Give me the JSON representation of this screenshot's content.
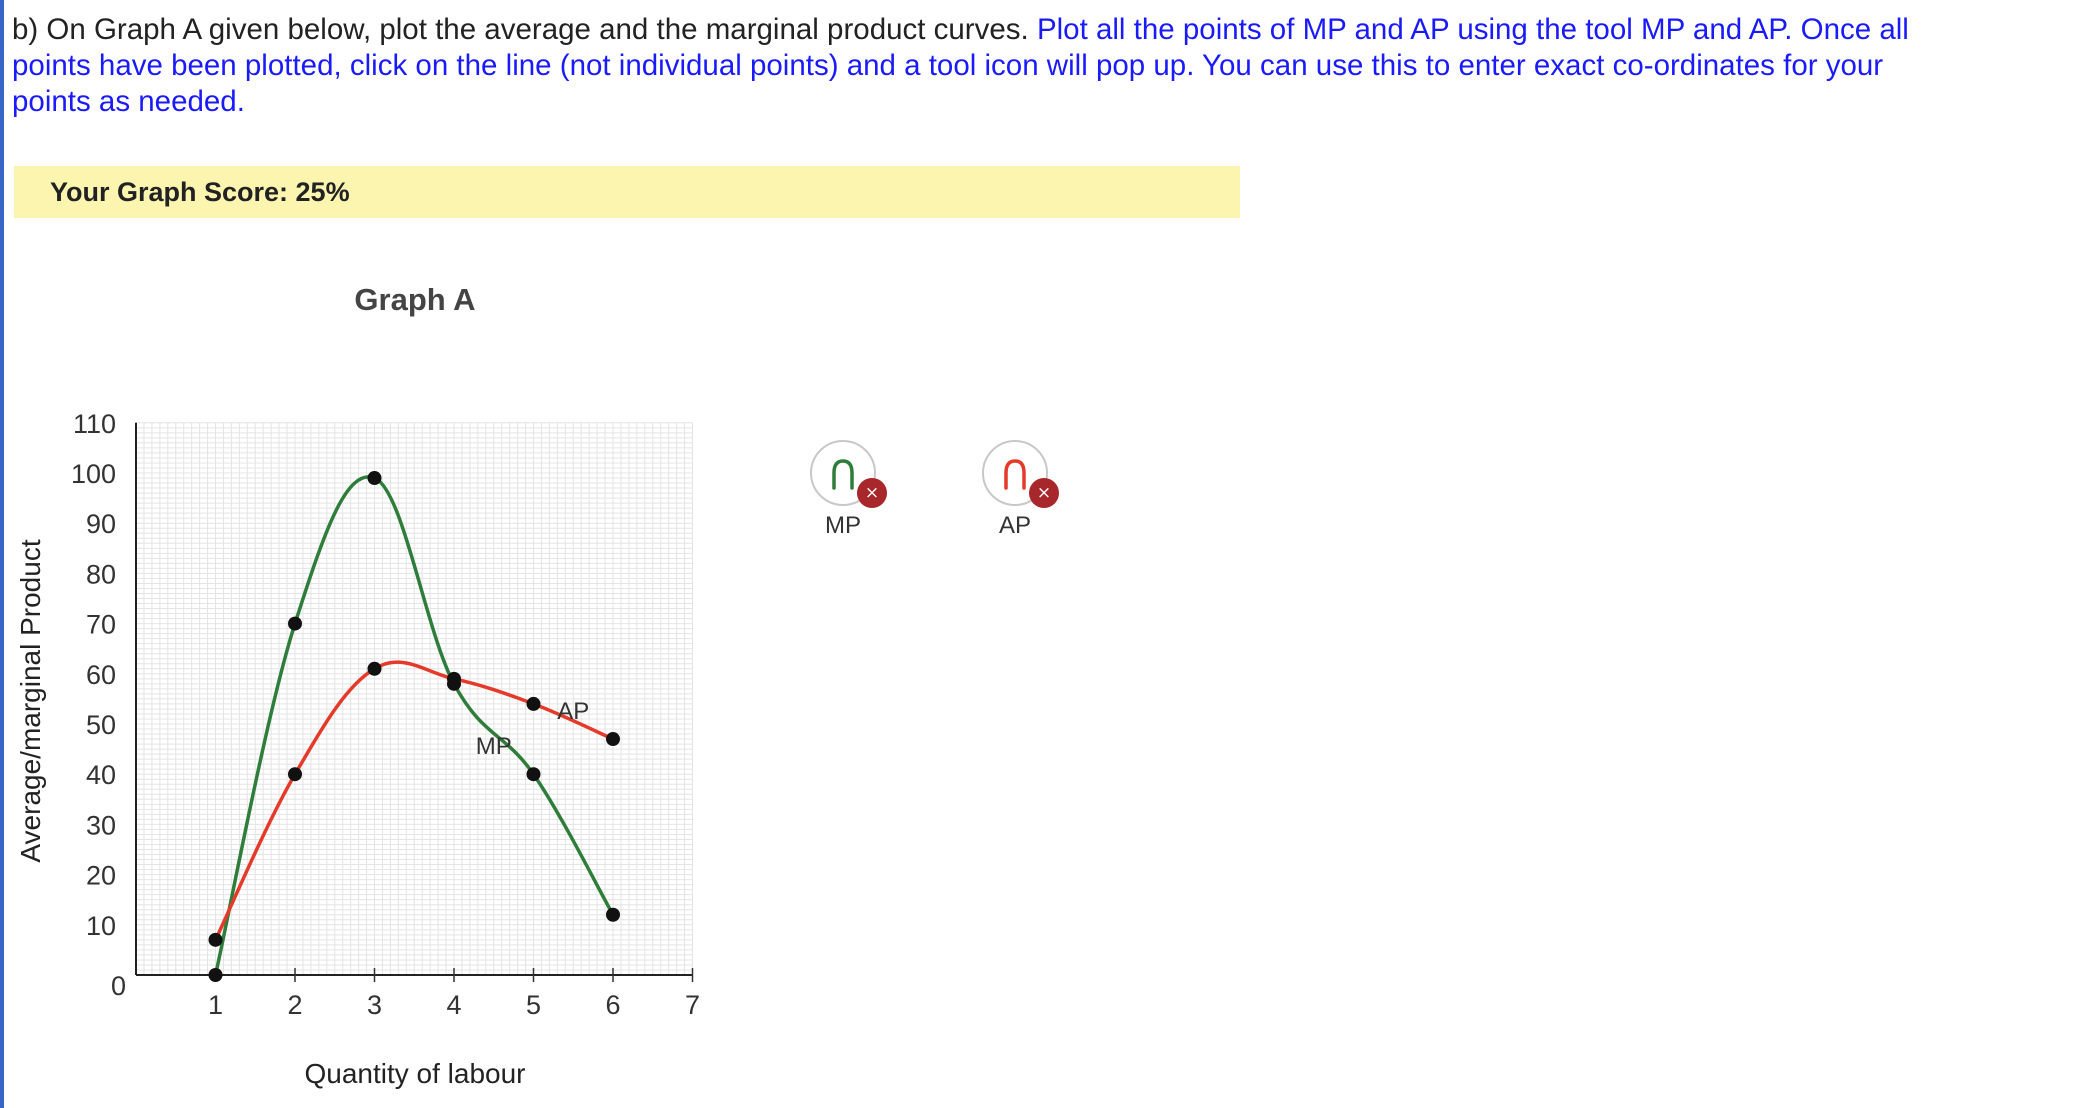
{
  "instructions": {
    "part_a": "b) On Graph A given below, plot the average and the marginal product curves. ",
    "part_b": "Plot all the points of MP and AP using the tool MP and AP. Once all points have been plotted, click on the line (not individual points) and a tool icon will pop up. You can use this to enter exact co-ordinates for your points as needed."
  },
  "score": {
    "label": "Your Graph Score: 25%"
  },
  "tools": [
    {
      "label": "MP",
      "color": "#2e7d3a",
      "remove": "×",
      "icon": "arc-curve-icon"
    },
    {
      "label": "AP",
      "color": "#e53a2a",
      "remove": "×",
      "icon": "arc-curve-icon"
    }
  ],
  "chart_data": {
    "type": "line",
    "title": "Graph A",
    "xlabel": "Quantity of labour",
    "ylabel": "Average/marginal Product",
    "xlim": [
      0,
      7
    ],
    "ylim": [
      0,
      110
    ],
    "xticks": [
      "1",
      "2",
      "3",
      "4",
      "5",
      "6",
      "7"
    ],
    "yticks": [
      "0",
      "10",
      "20",
      "30",
      "40",
      "50",
      "60",
      "70",
      "80",
      "90",
      "100",
      "110"
    ],
    "grid": true,
    "series": [
      {
        "name": "MP",
        "color": "#2e7d3a",
        "x": [
          1,
          2,
          3,
          4,
          5,
          6
        ],
        "y": [
          0,
          70,
          99,
          58,
          40,
          12
        ],
        "label_at": [
          4.5,
          44
        ]
      },
      {
        "name": "AP",
        "color": "#e53a2a",
        "x": [
          1,
          2,
          3,
          4,
          5,
          6
        ],
        "y": [
          7,
          40,
          61,
          59,
          54,
          47
        ],
        "label_at": [
          5.5,
          51
        ]
      }
    ]
  }
}
